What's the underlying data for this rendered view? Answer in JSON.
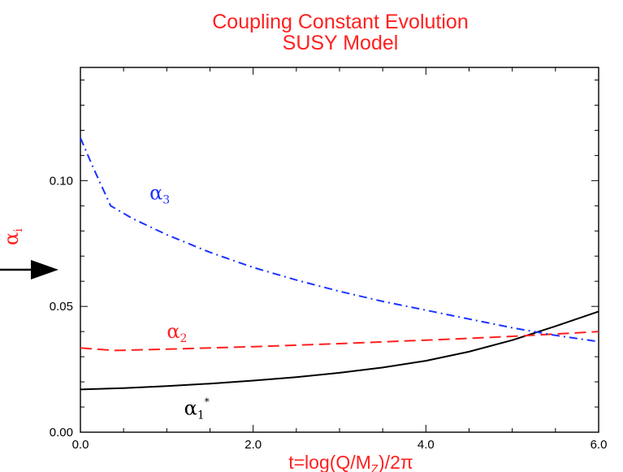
{
  "chart_data": {
    "type": "line",
    "title": "Coupling Constant Evolution",
    "subtitle": "SUSY Model",
    "xlabel": "t=log(Q/M",
    "xlabel_sub": "Z",
    "xlabel_tail": ")/2π",
    "ylabel": "α",
    "ylabel_sub": "i",
    "xlim": [
      0.0,
      6.0
    ],
    "ylim": [
      0.0,
      0.145
    ],
    "x_ticks": [
      0.0,
      2.0,
      4.0,
      6.0
    ],
    "x_tick_labels": [
      "0.0",
      "2.0",
      "4.0",
      "6.0"
    ],
    "y_ticks": [
      0.0,
      0.05,
      0.1
    ],
    "y_tick_labels": [
      "0.00",
      "0.05",
      "0.10"
    ],
    "grid": false,
    "colors": {
      "title": "#ff2020",
      "axis": "#000000"
    },
    "series": [
      {
        "letter": "α",
        "sub": "1",
        "mark": "*",
        "color": "#000000",
        "dash": "solid",
        "label_pos": [
          1.2,
          0.007
        ],
        "x": [
          0,
          0.5,
          1,
          1.5,
          2,
          2.5,
          3,
          3.5,
          4,
          4.5,
          5,
          5.5,
          6
        ],
        "y": [
          0.017,
          0.0175,
          0.0183,
          0.0193,
          0.0205,
          0.0219,
          0.0236,
          0.0257,
          0.0284,
          0.032,
          0.0366,
          0.0421,
          0.048
        ]
      },
      {
        "letter": "α",
        "sub": "2",
        "color": "#ff2020",
        "dash": "dashed",
        "label_pos": [
          1.0,
          0.0375
        ],
        "x": [
          0,
          0.4,
          1,
          1.5,
          2,
          2.5,
          3,
          3.5,
          4,
          4.5,
          5,
          5.5,
          6
        ],
        "y": [
          0.0335,
          0.0325,
          0.033,
          0.0335,
          0.034,
          0.0346,
          0.0352,
          0.0359,
          0.0366,
          0.0373,
          0.0381,
          0.039,
          0.04
        ]
      },
      {
        "letter": "α",
        "sub": "3",
        "color": "#1a33ff",
        "dash": "dashdot",
        "label_pos": [
          0.8,
          0.0925
        ],
        "x": [
          0,
          0.15,
          0.35,
          0.6,
          1,
          1.5,
          2,
          2.5,
          3,
          3.5,
          4,
          4.5,
          5,
          5.5,
          6
        ],
        "y": [
          0.117,
          0.105,
          0.09,
          0.085,
          0.0785,
          0.0715,
          0.0655,
          0.0605,
          0.056,
          0.052,
          0.0485,
          0.045,
          0.0415,
          0.0385,
          0.036
        ]
      }
    ]
  }
}
